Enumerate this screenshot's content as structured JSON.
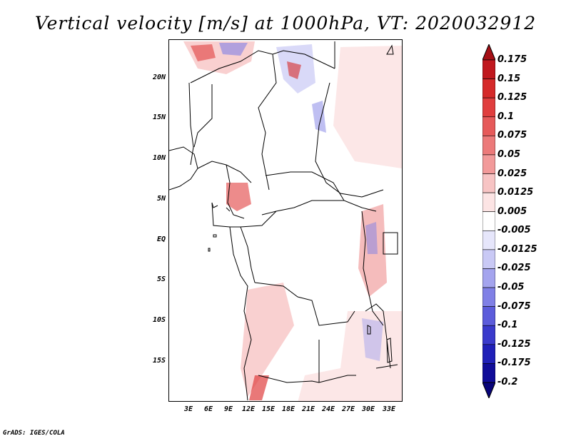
{
  "title": "Vertical velocity [m/s] at 1000hPa, VT: 2020032912",
  "footer": "GrADS: IGES/COLA",
  "lat_ticks": [
    "20N",
    "15N",
    "10N",
    "5N",
    "EQ",
    "5S",
    "10S",
    "15S"
  ],
  "lon_ticks": [
    "3E",
    "6E",
    "9E",
    "12E",
    "15E",
    "18E",
    "21E",
    "24E",
    "27E",
    "30E",
    "33E"
  ],
  "colorbar": {
    "labels": [
      "0.175",
      "0.15",
      "0.125",
      "0.1",
      "0.075",
      "0.05",
      "0.025",
      "0.0125",
      "0.005",
      "-0.005",
      "-0.0125",
      "-0.025",
      "-0.05",
      "-0.075",
      "-0.1",
      "-0.125",
      "-0.175",
      "-0.2"
    ],
    "colors": [
      "#a50f15",
      "#c0181e",
      "#d52a2a",
      "#e03e3e",
      "#e65a5a",
      "#ec7a7a",
      "#f29a9a",
      "#f7c4c4",
      "#fce4e4",
      "#ffffff",
      "#e6e6fb",
      "#c9c9f5",
      "#a4a4ee",
      "#8080e6",
      "#5c5cdb",
      "#3a3acc",
      "#2020b8",
      "#100c99",
      "#08047a"
    ]
  }
}
